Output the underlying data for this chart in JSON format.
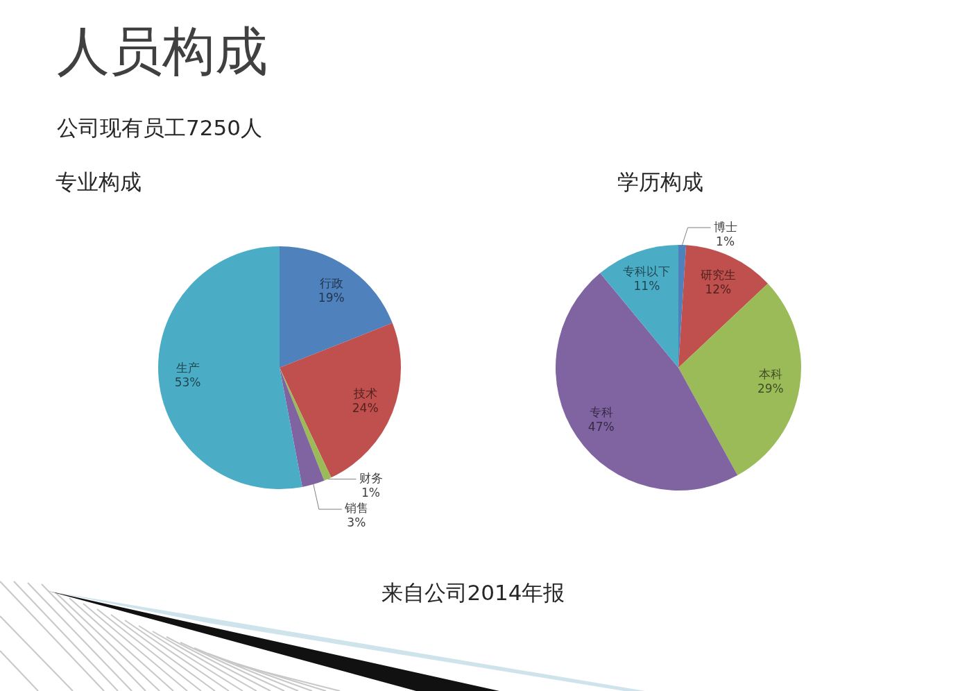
{
  "chart_data": [
    {
      "type": "pie",
      "title": "专业构成",
      "annotations": [
        "人员构成",
        "公司现有员工7250人",
        "来自公司2014年报"
      ],
      "categories": [
        "行政",
        "技术",
        "财务",
        "销售",
        "生产"
      ],
      "values": [
        19,
        24,
        1,
        3,
        53
      ],
      "colors": [
        "#4f81bd",
        "#c0504d",
        "#9bbb59",
        "#8064a2",
        "#4bacc6"
      ],
      "value_labels": [
        "19%",
        "24%",
        "1%",
        "3%",
        "53%"
      ]
    },
    {
      "type": "pie",
      "title": "学历构成",
      "categories": [
        "博士",
        "研究生",
        "本科",
        "专科",
        "专科以下"
      ],
      "values": [
        1,
        12,
        29,
        47,
        11
      ],
      "colors": [
        "#4f81bd",
        "#c0504d",
        "#9bbb59",
        "#8064a2",
        "#4bacc6"
      ],
      "value_labels": [
        "1%",
        "12%",
        "29%",
        "47%",
        "11%"
      ]
    }
  ]
}
